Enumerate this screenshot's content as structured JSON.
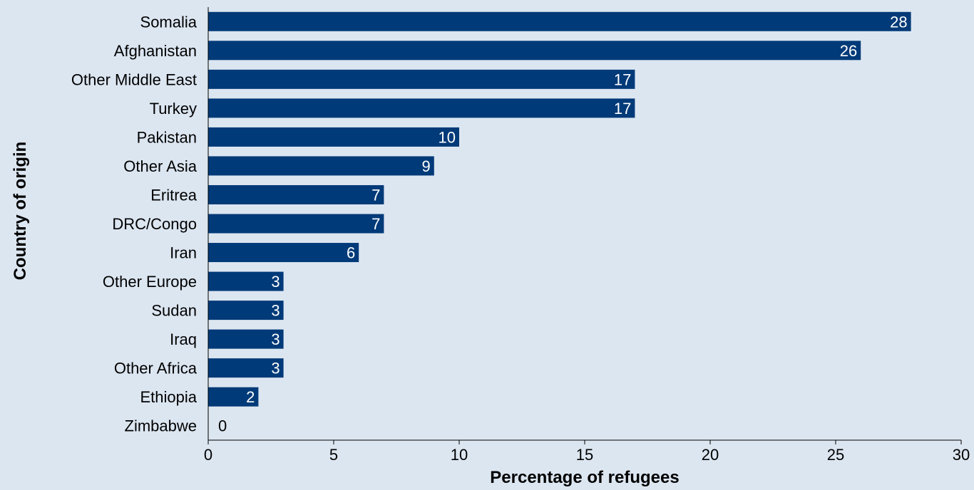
{
  "colors": {
    "background": "#dce6f1",
    "bar": "#003a78",
    "bar_label": "#ffffff",
    "outside_label": "#000000"
  },
  "chart_data": {
    "type": "bar",
    "orientation": "horizontal",
    "categories": [
      "Somalia",
      "Afghanistan",
      "Other Middle East",
      "Turkey",
      "Pakistan",
      "Other Asia",
      "Eritrea",
      "DRC/Congo",
      "Iran",
      "Other Europe",
      "Sudan",
      "Iraq",
      "Other Africa",
      "Ethiopia",
      "Zimbabwe"
    ],
    "values": [
      28,
      26,
      17,
      17,
      10,
      9,
      7,
      7,
      6,
      3,
      3,
      3,
      3,
      2,
      0
    ],
    "value_labels": [
      "28",
      "26",
      "17",
      "17",
      "10",
      "9",
      "7",
      "7",
      "6",
      "3",
      "3",
      "3",
      "3",
      "2",
      "0"
    ],
    "xlabel": "Percentage of refugees",
    "ylabel": "Country of origin",
    "xlim": [
      0,
      30
    ],
    "xticks": [
      0,
      5,
      10,
      15,
      20,
      25,
      30
    ],
    "xtick_labels": [
      "0",
      "5",
      "10",
      "15",
      "20",
      "25",
      "30"
    ],
    "grid": false,
    "legend": "none"
  }
}
